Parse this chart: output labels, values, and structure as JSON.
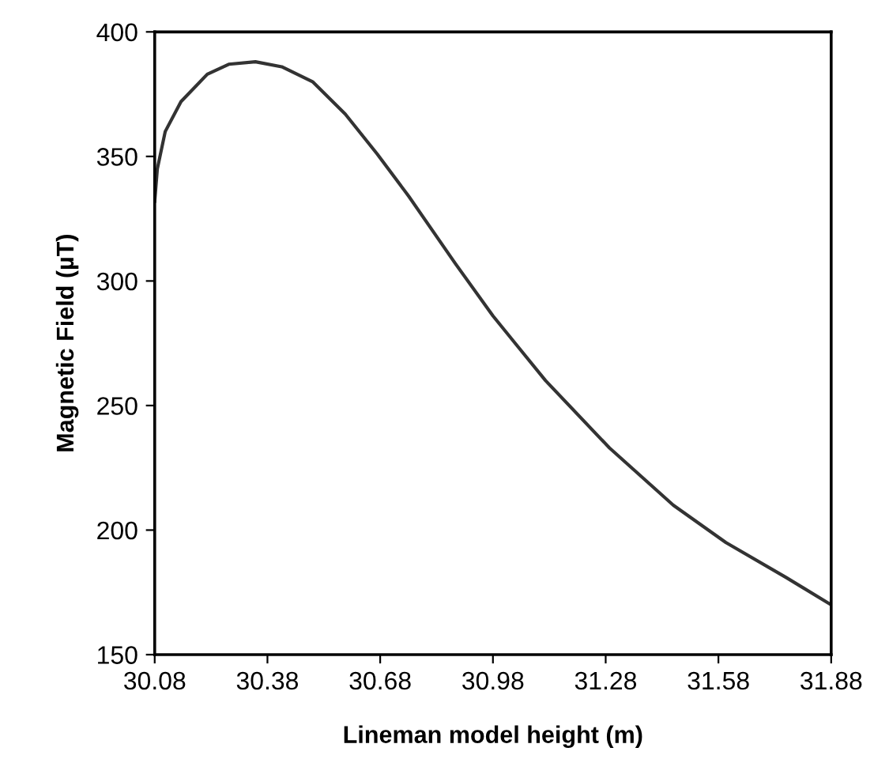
{
  "chart_data": {
    "type": "line",
    "xlabel": "Lineman model height (m)",
    "ylabel": "Magnetic Field (µT)",
    "xlim": [
      30.08,
      31.88
    ],
    "xticks": [
      {
        "value": 30.08,
        "label": "30.08"
      },
      {
        "value": 30.38,
        "label": "30.38"
      },
      {
        "value": 30.68,
        "label": "30.68"
      },
      {
        "value": 30.98,
        "label": "30.98"
      },
      {
        "value": 31.28,
        "label": "31.28"
      },
      {
        "value": 31.58,
        "label": "31.58"
      },
      {
        "value": 31.88,
        "label": "31.88"
      }
    ],
    "ylim": [
      150,
      400
    ],
    "yticks": [
      150,
      200,
      250,
      300,
      350,
      400
    ],
    "grid": false,
    "legend": false,
    "marker": "none",
    "line_style": "solid",
    "series": [
      {
        "color": "#333333",
        "x": [
          30.08,
          30.087,
          30.108,
          30.15,
          30.22,
          30.277,
          30.348,
          30.418,
          30.5,
          30.587,
          30.672,
          30.756,
          30.88,
          30.98,
          31.05,
          31.12,
          31.29,
          31.46,
          31.6,
          31.76,
          31.88
        ],
        "values": [
          332,
          345,
          360,
          372,
          383,
          387,
          388,
          386,
          380,
          367,
          351,
          334,
          307,
          286,
          273,
          260,
          233,
          210,
          195,
          181,
          170
        ]
      }
    ]
  }
}
